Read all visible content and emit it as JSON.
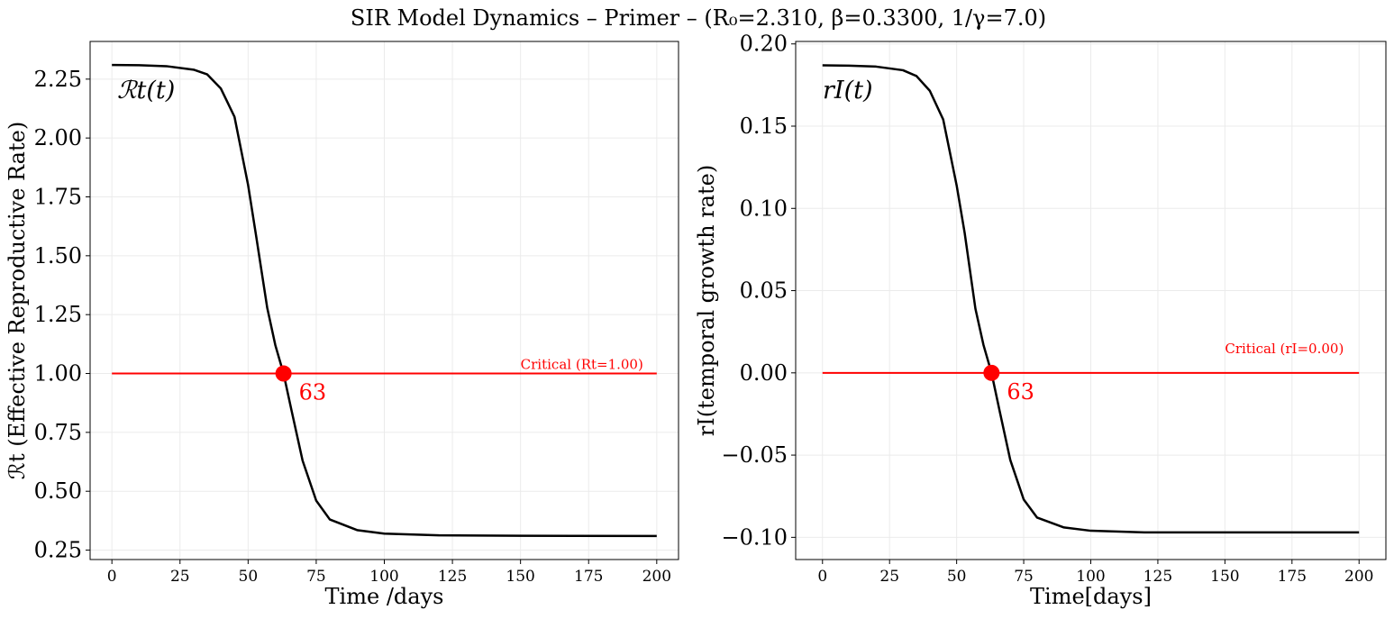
{
  "title": "SIR Model Dynamics – Primer – (R₀=2.310, β=0.3300, 1/γ=7.0)",
  "colors": {
    "curve": "#000000",
    "critical": "#ff0000",
    "grid": "#ebebeb"
  },
  "chart_data": [
    {
      "type": "line",
      "xlabel": "Time /days",
      "ylabel": "ℛt (Effective Reproductive Rate)",
      "series_label": "ℛt(t)",
      "xlim": [
        -8,
        208
      ],
      "ylim": [
        0.21,
        2.41
      ],
      "xticks": [
        0,
        25,
        50,
        75,
        100,
        125,
        150,
        175,
        200
      ],
      "yticks": [
        0.25,
        0.5,
        0.75,
        1.0,
        1.25,
        1.5,
        1.75,
        2.0,
        2.25
      ],
      "ytick_labels": [
        "0.25",
        "0.50",
        "0.75",
        "1.00",
        "1.25",
        "1.50",
        "1.75",
        "2.00",
        "2.25"
      ],
      "grid": true,
      "x": [
        0,
        10,
        20,
        30,
        35,
        40,
        45,
        50,
        53,
        55,
        57,
        60,
        63,
        66,
        70,
        75,
        80,
        90,
        100,
        120,
        150,
        200
      ],
      "y": [
        2.31,
        2.309,
        2.305,
        2.29,
        2.27,
        2.21,
        2.09,
        1.8,
        1.58,
        1.43,
        1.28,
        1.12,
        1.0,
        0.84,
        0.63,
        0.46,
        0.38,
        0.335,
        0.32,
        0.313,
        0.311,
        0.31
      ],
      "critical_value": 1.0,
      "critical_label": "Critical (Rt=1.00)",
      "critical_xrange": [
        0,
        200
      ],
      "crossing": {
        "x": 63,
        "y": 1.0,
        "label": "63"
      }
    },
    {
      "type": "line",
      "xlabel": "Time[days]",
      "ylabel": "rI(temporal growth rate)",
      "series_label": "rI(t)",
      "xlim": [
        -10,
        210
      ],
      "ylim": [
        -0.1135,
        0.2015
      ],
      "xticks": [
        0,
        25,
        50,
        75,
        100,
        125,
        150,
        175,
        200
      ],
      "yticks": [
        -0.1,
        -0.05,
        0.0,
        0.05,
        0.1,
        0.15,
        0.2
      ],
      "ytick_labels": [
        "−0.10",
        "−0.05",
        "0.00",
        "0.05",
        "0.10",
        "0.15",
        "0.20"
      ],
      "grid": true,
      "x": [
        0,
        10,
        20,
        30,
        35,
        40,
        45,
        50,
        53,
        55,
        57,
        60,
        63,
        66,
        70,
        75,
        80,
        90,
        100,
        120,
        150,
        200
      ],
      "y": [
        0.187,
        0.1868,
        0.1862,
        0.184,
        0.1805,
        0.1715,
        0.154,
        0.114,
        0.085,
        0.062,
        0.039,
        0.017,
        0.0,
        -0.023,
        -0.053,
        -0.077,
        -0.088,
        -0.094,
        -0.096,
        -0.097,
        -0.097,
        -0.097
      ],
      "critical_value": 0.0,
      "critical_label": "Critical (rI=0.00)",
      "critical_xrange": [
        0,
        200
      ],
      "crossing": {
        "x": 63,
        "y": 0.0,
        "label": "63"
      }
    }
  ]
}
